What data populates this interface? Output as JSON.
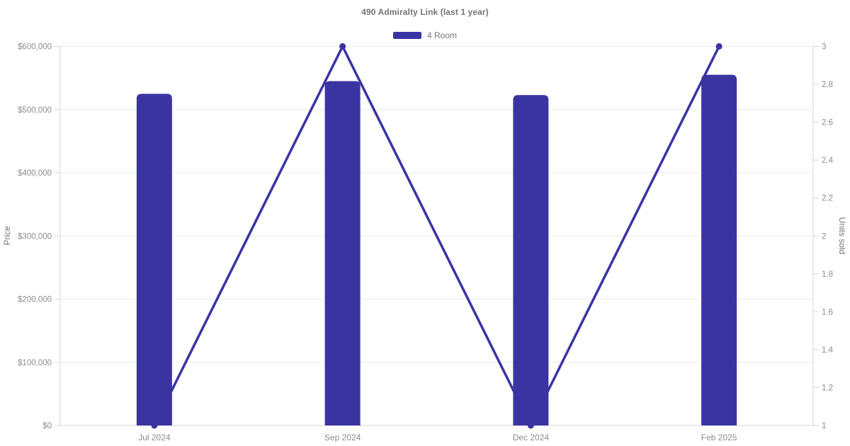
{
  "chart": {
    "title": "490 Admiralty Link (last 1 year)",
    "legend": {
      "items": [
        {
          "label": "4 Room",
          "color": "#3A34A3"
        }
      ]
    },
    "left_axis_title": "Price",
    "right_axis_title": "Units sold"
  },
  "chart_data": {
    "type": "combo",
    "title": "490 Admiralty Link (last 1 year)",
    "categories": [
      "Jul 2024",
      "Sep 2024",
      "Dec 2024",
      "Feb 2025"
    ],
    "series": [
      {
        "name": "4 Room",
        "type": "bar",
        "axis": "left",
        "values": [
          525000,
          545000,
          523000,
          555000
        ],
        "color": "#3A34A3"
      },
      {
        "name": "4 Room",
        "type": "line",
        "axis": "right",
        "values": [
          1,
          3,
          1,
          3
        ],
        "color": "#3A34A3"
      }
    ],
    "left_axis": {
      "title": "Price",
      "min": 0,
      "max": 600000,
      "tick_values": [
        0,
        100000,
        200000,
        300000,
        400000,
        500000,
        600000
      ],
      "tick_labels": [
        "$0",
        "$100,000",
        "$200,000",
        "$300,000",
        "$400,000",
        "$500,000",
        "$600,000"
      ]
    },
    "right_axis": {
      "title": "Units sold",
      "min": 1,
      "max": 3,
      "tick_values": [
        1,
        1.2,
        1.4,
        1.6,
        1.8,
        2,
        2.2,
        2.4,
        2.6,
        2.8,
        3
      ],
      "tick_labels": [
        "1",
        "1.2",
        "1.4",
        "1.6",
        "1.8",
        "2",
        "2.2",
        "2.4",
        "2.6",
        "2.8",
        "3"
      ]
    },
    "legend_position": "top",
    "grid": true,
    "colors": {
      "accent": "#3A34A3",
      "gridline": "#E8E8E8",
      "axis_line": "#D5D5D5",
      "tick_label": "#8C8C8C",
      "title_text": "#757575"
    }
  }
}
